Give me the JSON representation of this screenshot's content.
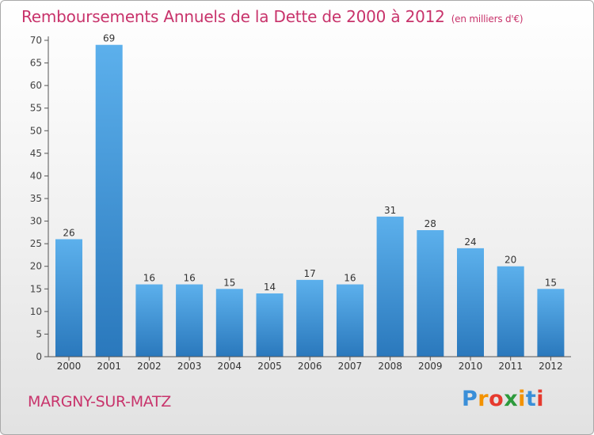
{
  "header": {
    "title": "Remboursements Annuels de la Dette de 2000 à 2012",
    "subtitle": "(en milliers d'€)"
  },
  "footer": {
    "place": "MARGNY-SUR-MATZ",
    "logo": [
      "P",
      "r",
      "o",
      "x",
      "i",
      "t",
      "i"
    ],
    "logo_colors": [
      "#3a8fd8",
      "#f39200",
      "#e63a2e",
      "#2d9a3c",
      "#f39200",
      "#3a8fd8",
      "#e63a2e"
    ]
  },
  "chart_data": {
    "type": "bar",
    "title": "Remboursements Annuels de la Dette de 2000 à 2012",
    "unit": "(en milliers d'€)",
    "categories": [
      "2000",
      "2001",
      "2002",
      "2003",
      "2004",
      "2005",
      "2006",
      "2007",
      "2008",
      "2009",
      "2010",
      "2011",
      "2012"
    ],
    "values": [
      26,
      69,
      16,
      16,
      15,
      14,
      17,
      16,
      31,
      28,
      24,
      20,
      15
    ],
    "ylim": [
      0,
      70
    ],
    "yticks": [
      0,
      5,
      10,
      15,
      20,
      25,
      30,
      35,
      40,
      45,
      50,
      55,
      60,
      65,
      70
    ],
    "grid": false,
    "bar_color_top": "#5cb0ec",
    "bar_color_bottom": "#2a78bc"
  }
}
